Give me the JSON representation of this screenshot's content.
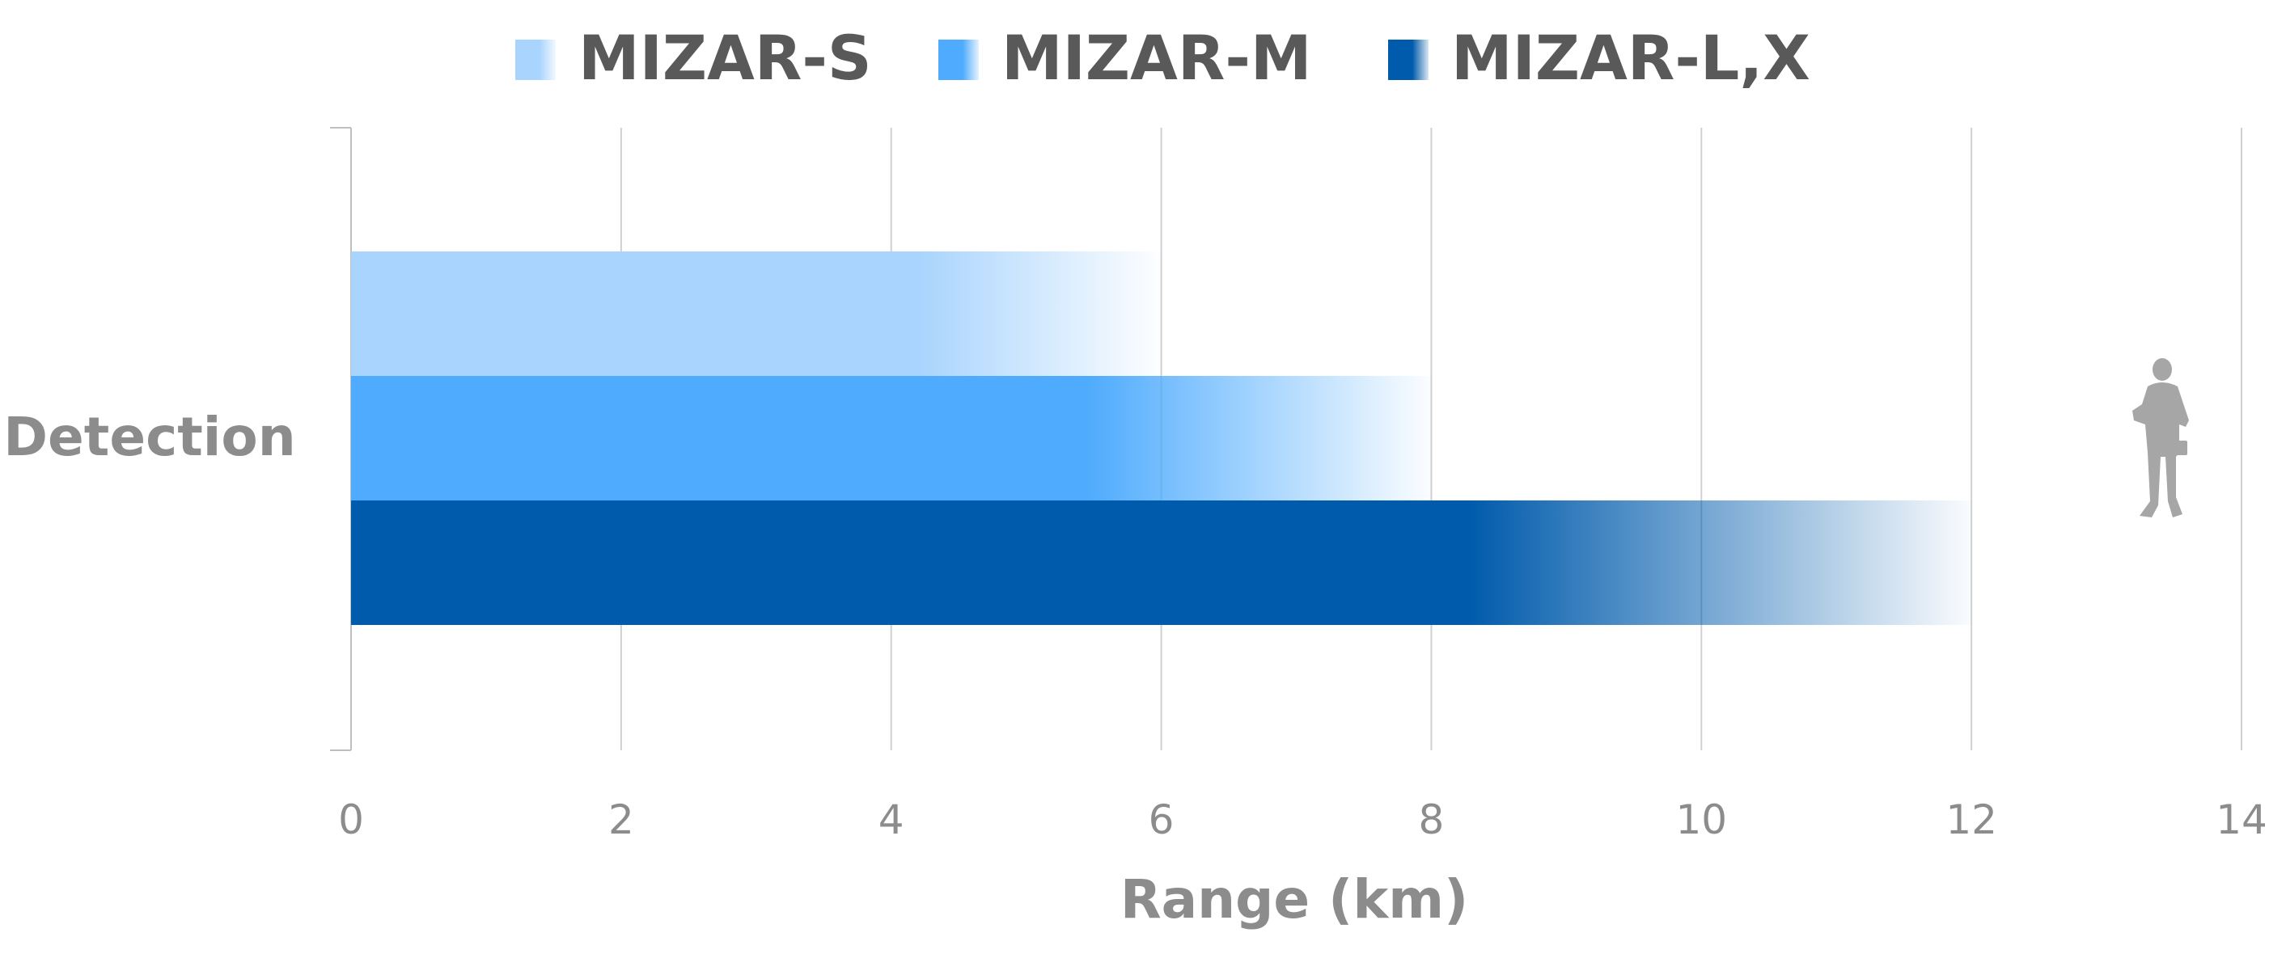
{
  "chart_data": {
    "type": "bar",
    "orientation": "horizontal",
    "categories": [
      "Detection"
    ],
    "series": [
      {
        "name": "MIZAR-S",
        "values": [
          6
        ],
        "color": "#a9d4fd"
      },
      {
        "name": "MIZAR-M",
        "values": [
          8
        ],
        "color": "#4eabfd"
      },
      {
        "name": "MIZAR-L,X",
        "values": [
          12
        ],
        "color": "#005bac"
      }
    ],
    "xlabel": "Range (km)",
    "xlim": [
      0,
      14
    ],
    "xticks": [
      "0",
      "2",
      "4",
      "6",
      "8",
      "10",
      "12",
      "14"
    ],
    "grid": true,
    "legend": "top",
    "bar_style": "solid fading to white toward the end",
    "annotation_icon": "person-silhouette-icon"
  }
}
